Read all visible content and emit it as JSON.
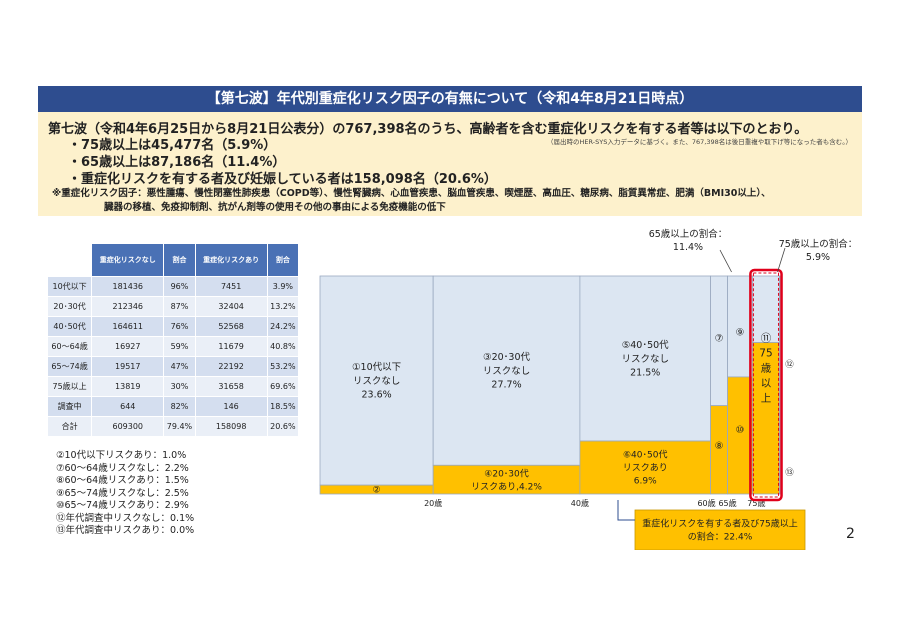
{
  "header": {
    "title": "【第七波】年代別重症化リスク因子の有無について（令和4年8月21日時点）"
  },
  "summary": {
    "main": "第七波（令和4年6月25日から8月21日公表分）の767,398名のうち、高齢者を含む重症化リスクを有する者等は以下のとおり。",
    "note": "（届出時のHER-SYS入力データに基づく。また、767,398名は後日重複や取下げ等になった者も含む。）",
    "bullet1": "・75歳以上は45,477名（5.9%）",
    "bullet2": "・65歳以上は87,186名（11.4%）",
    "bullet3": "・重症化リスクを有する者及び妊娠している者は158,098名（20.6%）",
    "risk_line1": "※重症化リスク因子：悪性腫瘍、慢性閉塞性肺疾患（COPD等）、慢性腎臓病、心血管疾患、脳血管疾患、喫煙歴、高血圧、糖尿病、脂質異常症、肥満（BMI30以上）、",
    "risk_line2": "臓器の移植、免疫抑制剤、抗がん剤等の使用その他の事由による免疫機能の低下"
  },
  "table": {
    "headers": [
      "",
      "重症化リスクなし",
      "割合",
      "重症化リスクあり",
      "割合"
    ],
    "rows": [
      [
        "10代以下",
        "181436",
        "96%",
        "7451",
        "3.9%"
      ],
      [
        "20･30代",
        "212346",
        "87%",
        "32404",
        "13.2%"
      ],
      [
        "40･50代",
        "164611",
        "76%",
        "52568",
        "24.2%"
      ],
      [
        "60～64歳",
        "16927",
        "59%",
        "11679",
        "40.8%"
      ],
      [
        "65～74歳",
        "19517",
        "47%",
        "22192",
        "53.2%"
      ],
      [
        "75歳以上",
        "13819",
        "30%",
        "31658",
        "69.6%"
      ],
      [
        "調査中",
        "644",
        "82%",
        "146",
        "18.5%"
      ],
      [
        "合計",
        "609300",
        "79.4%",
        "158098",
        "20.6%"
      ]
    ]
  },
  "notes": [
    "②10代以下リスクあり：1.0%",
    "⑦60～64歳リスクなし：2.2%",
    "⑧60～64歳リスクあり：1.5%",
    "⑨65～74歳リスクなし：2.5%",
    "⑩65～74歳リスクあり：2.9%",
    "⑫年代調査中リスクなし：0.1%",
    "⑬年代調査中リスクあり：0.0%"
  ],
  "page_number": "2",
  "colors": {
    "title_bg": "#2e4d8f",
    "summary_bg": "#fdf1cc",
    "no_risk": "#dce6f2",
    "risk": "#ffc000",
    "highlight": "#e0001b",
    "table_header": "#4a71b5"
  },
  "chart_data": {
    "type": "mosaic",
    "x_ticks": [
      "20歳",
      "40歳",
      "60歳",
      "65歳",
      "75歳"
    ],
    "groups": [
      {
        "name": "10代以下",
        "width_pct": 24.6,
        "no_risk_pct": 23.6,
        "risk_pct": 1.0,
        "no_risk_label": [
          "①10代以下",
          "リスクなし",
          "23.6%"
        ],
        "risk_label": [
          "②"
        ]
      },
      {
        "name": "20･30代",
        "width_pct": 31.9,
        "no_risk_pct": 27.7,
        "risk_pct": 4.2,
        "no_risk_label": [
          "③20･30代",
          "リスクなし",
          "27.7%"
        ],
        "risk_label": [
          "④20･30代",
          "リスクあり,4.2%"
        ]
      },
      {
        "name": "40･50代",
        "width_pct": 28.4,
        "no_risk_pct": 21.5,
        "risk_pct": 6.9,
        "no_risk_label": [
          "⑤40･50代",
          "リスクなし",
          "21.5%"
        ],
        "risk_label": [
          "⑥40･50代",
          "リスクあり",
          "6.9%"
        ]
      },
      {
        "name": "60～64歳",
        "width_pct": 3.7,
        "no_risk_pct": 2.2,
        "risk_pct": 1.5,
        "no_risk_label": [
          "⑦"
        ],
        "risk_label": [
          "⑧"
        ]
      },
      {
        "name": "65～74歳",
        "width_pct": 5.4,
        "no_risk_pct": 2.5,
        "risk_pct": 2.9,
        "no_risk_label": [
          "⑨"
        ],
        "risk_label": [
          "⑩"
        ]
      },
      {
        "name": "75歳以上",
        "width_pct": 5.9,
        "no_risk_pct": 1.8,
        "risk_pct": 4.1,
        "no_risk_label": [
          "⑪",
          "75",
          "歳",
          "以",
          "上"
        ],
        "risk_label": []
      },
      {
        "name": "調査中",
        "width_pct": 0.1,
        "no_risk_pct": 0.1,
        "risk_pct": 0.0,
        "no_risk_label": [
          "⑫"
        ],
        "risk_label": [
          "⑬"
        ]
      }
    ],
    "annotations": {
      "over65": [
        "65歳以上の割合：",
        "11.4%"
      ],
      "over75": [
        "75歳以上の割合：",
        "5.9%"
      ],
      "risk_total": [
        "重症化リスクを有する者及び75歳以上",
        "の割合：22.4%"
      ]
    }
  }
}
